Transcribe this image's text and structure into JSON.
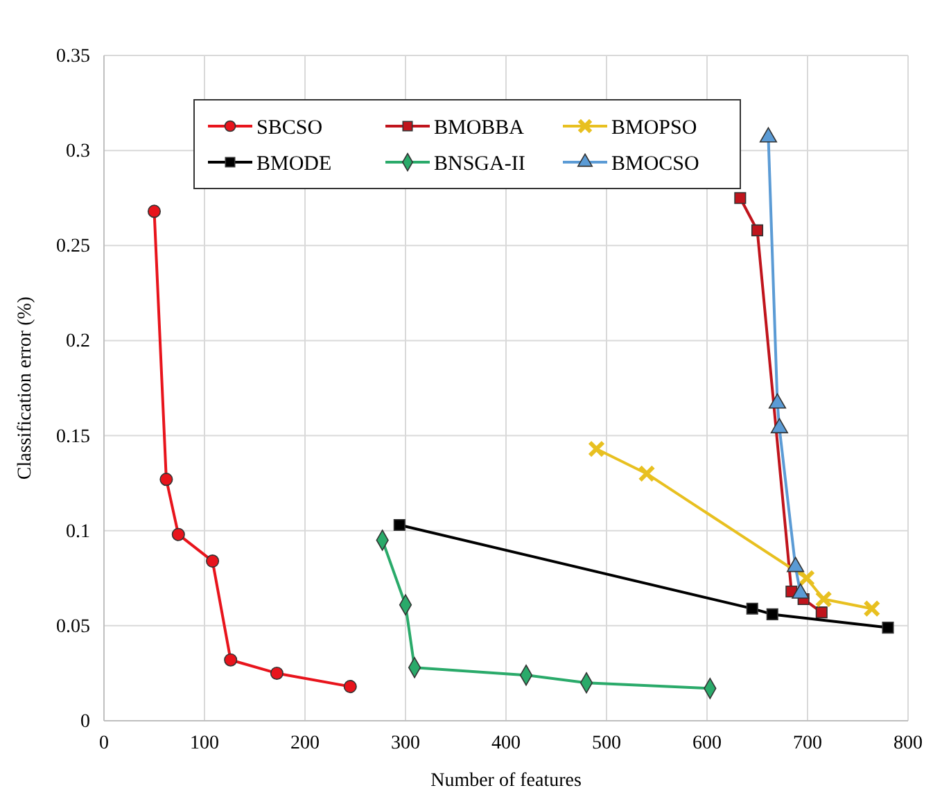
{
  "chart_data": {
    "type": "line",
    "xlabel": "Number of features",
    "ylabel": "Classification error (%)",
    "xlim": [
      0,
      800
    ],
    "xticks": [
      0,
      100,
      200,
      300,
      400,
      500,
      600,
      700,
      800
    ],
    "ylim": [
      0,
      0.35
    ],
    "yticks": [
      {
        "value": 0,
        "label": "0"
      },
      {
        "value": 0.05,
        "label": "0.05"
      },
      {
        "value": 0.1,
        "label": "0.1"
      },
      {
        "value": 0.15,
        "label": "0.15"
      },
      {
        "value": 0.2,
        "label": "0.2"
      },
      {
        "value": 0.25,
        "label": "0.25"
      },
      {
        "value": 0.3,
        "label": "0.3"
      },
      {
        "value": 0.35,
        "label": "0.35"
      }
    ],
    "grid": true,
    "legend": "top",
    "series": [
      {
        "name": "SBCSO",
        "color": "#e8141c",
        "marker": "circle",
        "x": [
          50,
          62,
          74,
          108,
          126,
          172,
          245
        ],
        "values": [
          0.268,
          0.127,
          0.098,
          0.084,
          0.032,
          0.025,
          0.018
        ]
      },
      {
        "name": "BMOBBA",
        "color": "#c0141c",
        "marker": "square",
        "x": [
          633,
          650,
          684,
          696,
          714
        ],
        "values": [
          0.275,
          0.258,
          0.068,
          0.064,
          0.057
        ]
      },
      {
        "name": "BMOPSO",
        "color": "#e8c020",
        "marker": "cross",
        "x": [
          490,
          540,
          699,
          716,
          764
        ],
        "values": [
          0.143,
          0.13,
          0.075,
          0.064,
          0.059
        ]
      },
      {
        "name": "BMODE",
        "color": "#000000",
        "marker": "square",
        "x": [
          294,
          645,
          665,
          780
        ],
        "values": [
          0.103,
          0.059,
          0.056,
          0.049
        ]
      },
      {
        "name": "BNSGA-II",
        "color": "#2aaa6a",
        "marker": "diamond",
        "x": [
          277,
          300,
          309,
          420,
          480,
          603
        ],
        "values": [
          0.095,
          0.061,
          0.028,
          0.024,
          0.02,
          0.017
        ]
      },
      {
        "name": "BMOCSO",
        "color": "#5b9bd5",
        "marker": "triangle",
        "x": [
          661,
          670,
          672,
          688,
          693
        ],
        "values": [
          0.307,
          0.167,
          0.154,
          0.081,
          0.067
        ]
      }
    ]
  }
}
